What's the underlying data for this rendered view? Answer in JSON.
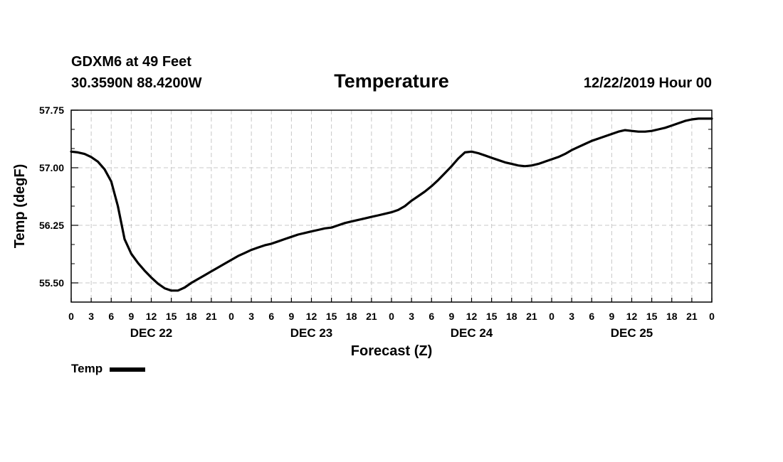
{
  "header": {
    "station": "GDXM6 at 49 Feet",
    "coords": "30.3590N 88.4200W",
    "timestamp": "12/22/2019 Hour 00"
  },
  "chart_data": {
    "type": "line",
    "title": "Temperature",
    "xlabel": "Forecast (Z)",
    "ylabel": "Temp (degF)",
    "ylim": [
      55.25,
      57.75
    ],
    "xlim": [
      0,
      96
    ],
    "yticks": [
      "57.75",
      "57.00",
      "56.25",
      "55.50"
    ],
    "ytick_values": [
      57.75,
      57.0,
      56.25,
      55.5
    ],
    "xtick_labels": [
      "0",
      "3",
      "6",
      "9",
      "12",
      "15",
      "18",
      "21",
      "0",
      "3",
      "6",
      "9",
      "12",
      "15",
      "18",
      "21",
      "0",
      "3",
      "6",
      "9",
      "12",
      "15",
      "18",
      "21",
      "0",
      "3",
      "6",
      "9",
      "12",
      "15",
      "18",
      "21",
      "0"
    ],
    "day_labels": [
      {
        "label": "DEC 22",
        "hour": 12
      },
      {
        "label": "DEC 23",
        "hour": 36
      },
      {
        "label": "DEC 24",
        "hour": 60
      },
      {
        "label": "DEC 25",
        "hour": 84
      }
    ],
    "grid": true,
    "legend": "bottom-left",
    "series": [
      {
        "name": "Temp",
        "x": [
          0,
          1,
          2,
          3,
          4,
          5,
          6,
          7,
          8,
          9,
          10,
          11,
          12,
          13,
          14,
          15,
          16,
          17,
          18,
          19,
          20,
          21,
          22,
          23,
          24,
          25,
          26,
          27,
          28,
          29,
          30,
          31,
          32,
          33,
          34,
          35,
          36,
          37,
          38,
          39,
          40,
          41,
          42,
          43,
          44,
          45,
          46,
          47,
          48,
          49,
          50,
          51,
          52,
          53,
          54,
          55,
          56,
          57,
          58,
          59,
          60,
          61,
          62,
          63,
          64,
          65,
          66,
          67,
          68,
          69,
          70,
          71,
          72,
          73,
          74,
          75,
          76,
          77,
          78,
          79,
          80,
          81,
          82,
          83,
          84,
          85,
          86,
          87,
          88,
          89,
          90,
          91,
          92,
          93,
          94,
          95,
          96
        ],
        "values": [
          57.21,
          57.2,
          57.18,
          57.14,
          57.08,
          56.98,
          56.82,
          56.5,
          56.07,
          55.88,
          55.76,
          55.66,
          55.57,
          55.49,
          55.43,
          55.4,
          55.4,
          55.44,
          55.5,
          55.55,
          55.6,
          55.65,
          55.7,
          55.75,
          55.8,
          55.85,
          55.89,
          55.93,
          55.96,
          55.99,
          56.01,
          56.04,
          56.07,
          56.1,
          56.13,
          56.15,
          56.17,
          56.19,
          56.21,
          56.22,
          56.25,
          56.28,
          56.3,
          56.32,
          56.34,
          56.36,
          56.38,
          56.4,
          56.42,
          56.45,
          56.5,
          56.57,
          56.63,
          56.69,
          56.76,
          56.84,
          56.93,
          57.02,
          57.12,
          57.2,
          57.21,
          57.19,
          57.16,
          57.13,
          57.1,
          57.07,
          57.05,
          57.03,
          57.02,
          57.03,
          57.05,
          57.08,
          57.11,
          57.14,
          57.18,
          57.23,
          57.27,
          57.31,
          57.35,
          57.38,
          57.41,
          57.44,
          57.47,
          57.49,
          57.48,
          57.47,
          57.47,
          57.48,
          57.5,
          57.52,
          57.55,
          57.58,
          57.61,
          57.63,
          57.64,
          57.64,
          57.64
        ]
      }
    ]
  }
}
